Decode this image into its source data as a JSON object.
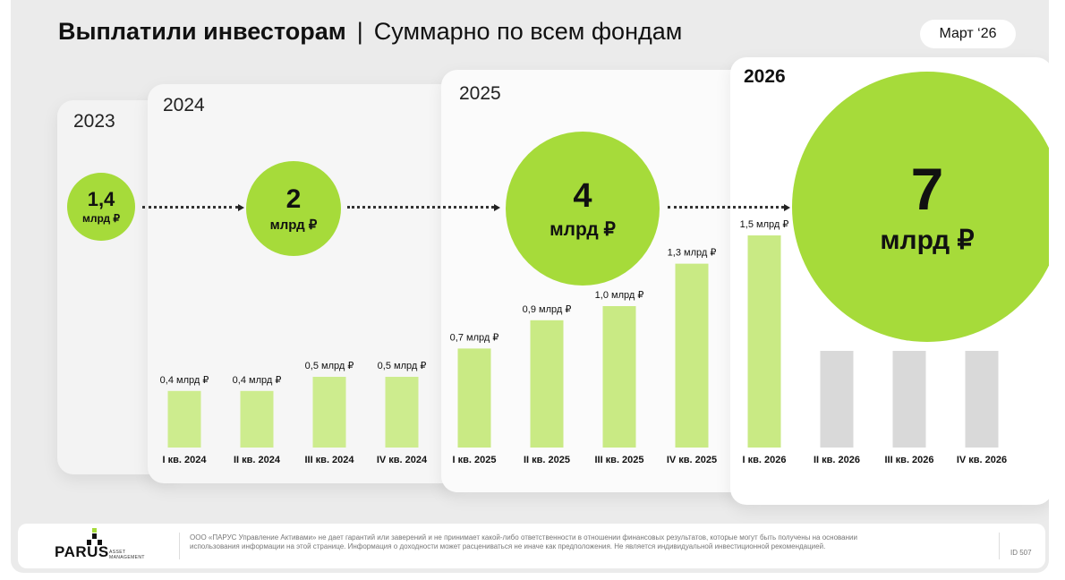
{
  "header": {
    "title_bold": "Выплатили инвесторам",
    "separator": "|",
    "title_rest": "Суммарно по всем фондам",
    "date_badge": "Март ‘26"
  },
  "years": [
    "2023",
    "2024",
    "2025",
    "2026"
  ],
  "totals": [
    {
      "value": "1,4",
      "unit": "млрд ₽"
    },
    {
      "value": "2",
      "unit": "млрд ₽"
    },
    {
      "value": "4",
      "unit": "млрд ₽"
    },
    {
      "value": "7",
      "unit": "млрд ₽"
    }
  ],
  "colors": {
    "accent": "#a6db3a",
    "bar_light": "#cdec8e",
    "bar_bright": "#c9ea84",
    "bar_empty": "#d9d9d9"
  },
  "chart_data": {
    "type": "bar",
    "categories": [
      "I кв. 2024",
      "II кв. 2024",
      "III кв. 2024",
      "IV кв. 2024",
      "I кв. 2025",
      "II кв. 2025",
      "III кв. 2025",
      "IV кв. 2025",
      "I кв. 2026",
      "II кв. 2026",
      "III кв. 2026",
      "IV кв. 2026"
    ],
    "values": [
      0.4,
      0.4,
      0.5,
      0.5,
      0.7,
      0.9,
      1.0,
      1.3,
      1.5,
      null,
      null,
      null
    ],
    "value_labels": [
      "0,4 млрд ₽",
      "0,4 млрд ₽",
      "0,5 млрд ₽",
      "0,5 млрд ₽",
      "0,7 млрд ₽",
      "0,9 млрд ₽",
      "1,0 млрд ₽",
      "1,3 млрд ₽",
      "1,5 млрд ₽",
      "",
      "",
      ""
    ],
    "ylim": [
      0,
      1.5
    ]
  },
  "footer": {
    "logo": "PARUS",
    "logo_sub_1": "ASSET",
    "logo_sub_2": "MANAGEMENT",
    "disclaimer": "ООО «ПАРУС Управление Активами» не дает гарантий или заверений и не принимает какой-либо ответственности в отношении финансовых результатов, которые могут быть получены на основании использования информации на этой странице. Информация о доходности может расцениваться не иначе как предположения. Не является индивидуальной инвестиционной рекомендацией.",
    "id": "ID 507"
  }
}
